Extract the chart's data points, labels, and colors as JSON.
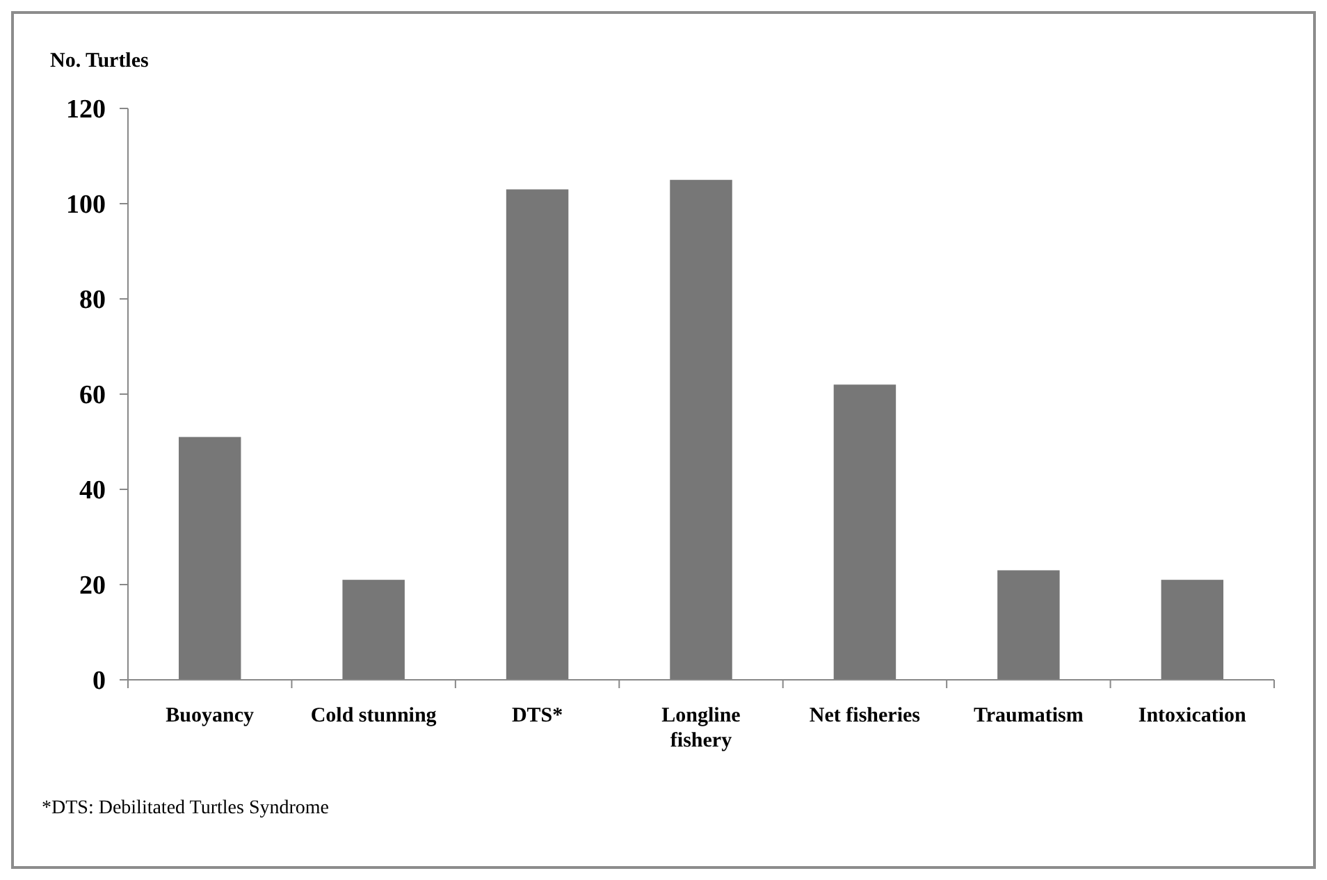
{
  "chart_data": {
    "type": "bar",
    "ylabel": "No. Turtles",
    "categories": [
      "Buoyancy",
      "Cold stunning",
      "DTS*",
      "Longline fishery",
      "Net fisheries",
      "Traumatism",
      "Intoxication"
    ],
    "values": [
      51,
      21,
      103,
      105,
      62,
      23,
      21
    ],
    "color": "#777777",
    "ylim": [
      0,
      120
    ],
    "yticks": [
      0,
      20,
      40,
      60,
      80,
      100,
      120
    ],
    "grid": false,
    "annotations": [
      "*DTS: Debilitated Turtles Syndrome"
    ]
  }
}
